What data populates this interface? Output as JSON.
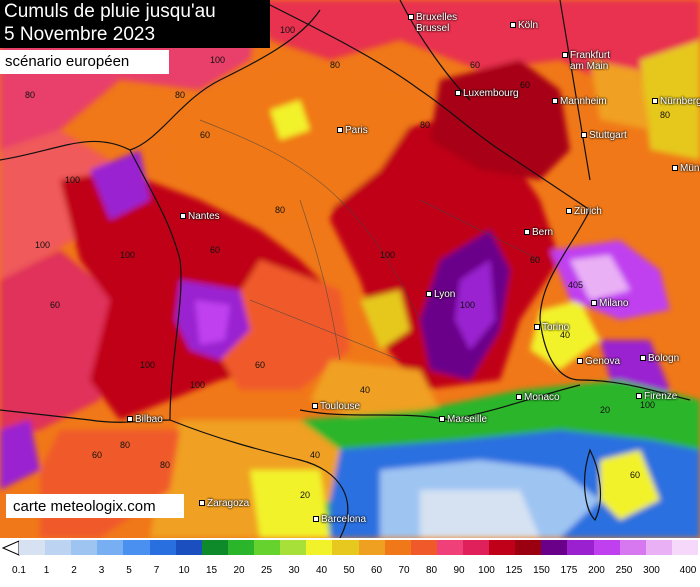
{
  "title": {
    "line1": "Cumuls de pluie jusqu'au",
    "line2": "5 Novembre 2023"
  },
  "subtitle": "scénario européen",
  "credit": "carte meteologix.com",
  "cities": [
    {
      "name": "Bruxelles",
      "name2": "Brussel"
    },
    {
      "name": "Köln"
    },
    {
      "name": "Frankfurt",
      "name2": "am Main"
    },
    {
      "name": "Luxembourg"
    },
    {
      "name": "Mannheim"
    },
    {
      "name": "Nürnberg"
    },
    {
      "name": "Paris"
    },
    {
      "name": "Stuttgart"
    },
    {
      "name": "Münch"
    },
    {
      "name": "Nantes"
    },
    {
      "name": "Zürich"
    },
    {
      "name": "Bern"
    },
    {
      "name": "Lyon"
    },
    {
      "name": "Milano"
    },
    {
      "name": "Torino"
    },
    {
      "name": "Genova"
    },
    {
      "name": "Bologn"
    },
    {
      "name": "Firenze"
    },
    {
      "name": "Bilbao"
    },
    {
      "name": "Toulouse"
    },
    {
      "name": "Marseille"
    },
    {
      "name": "Monaco"
    },
    {
      "name": "Zaragoza"
    },
    {
      "name": "Barcelona"
    }
  ],
  "isolines": [
    "80",
    "60",
    "100",
    "80",
    "60",
    "100",
    "80",
    "80",
    "100",
    "80",
    "100",
    "60",
    "60",
    "100",
    "100",
    "60",
    "60",
    "100",
    "40",
    "80",
    "80",
    "40",
    "20",
    "405",
    "100",
    "100",
    "60",
    "40",
    "20",
    "60",
    "80",
    "100",
    "60",
    "60",
    "100"
  ],
  "legend": {
    "ticks": [
      "0.1",
      "1",
      "2",
      "3",
      "5",
      "7",
      "10",
      "15",
      "20",
      "25",
      "30",
      "40",
      "50",
      "60",
      "70",
      "80",
      "90",
      "100",
      "125",
      "150",
      "175",
      "200",
      "250",
      "300",
      "400"
    ],
    "colors": [
      "#d6e2f2",
      "#bcd3f2",
      "#9ec4f2",
      "#78aef2",
      "#4a90f0",
      "#2a6fe0",
      "#1b4fc0",
      "#0e8a2a",
      "#2bb52b",
      "#66d22e",
      "#a8e03a",
      "#f2f22a",
      "#e6c81e",
      "#f0a020",
      "#f07818",
      "#f05a2a",
      "#f0407a",
      "#e0205a",
      "#c00018",
      "#9a0010",
      "#6a008a",
      "#9a20d0",
      "#c040f0",
      "#d878f0",
      "#eab0f5",
      "#f5d8fa"
    ]
  }
}
